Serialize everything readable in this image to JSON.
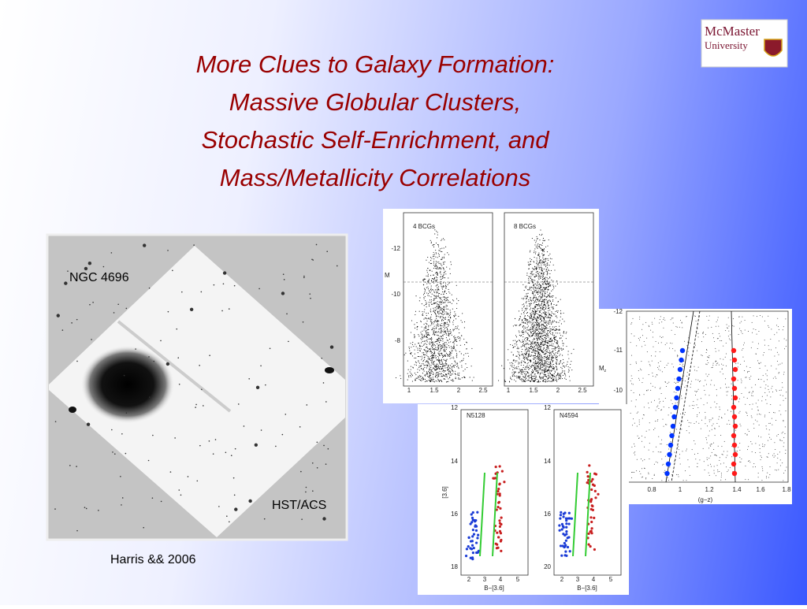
{
  "title": [
    "More Clues to Galaxy Formation:",
    "Massive Globular Clusters,",
    "Stochastic Self-Enrichment, and",
    "Mass/Metallicity Correlations"
  ],
  "logo": {
    "line1": "McMaster",
    "line2": "University"
  },
  "image": {
    "label_top": "NGC 4696",
    "label_bottom": "HST/ACS"
  },
  "caption": "Harris && 2006",
  "figures": {
    "cmd_bcg": {
      "panels": [
        "4 BCGs",
        "8 BCGs"
      ],
      "ylabel": "M",
      "ylabel_sub": "I",
      "yticks": [
        "-12",
        "-10",
        "-8"
      ],
      "xticks": [
        "1",
        "1.5",
        "2",
        "2.5"
      ]
    },
    "cmd_gz": {
      "ylabel": "M",
      "ylabel_sub": "z",
      "yticks": [
        "-12",
        "-11",
        "-10"
      ],
      "xticks": [
        "0.8",
        "1",
        "1.2",
        "1.4",
        "1.6",
        "1.8"
      ],
      "xlabel": "(g−z)"
    },
    "cmd_ir": {
      "panels": [
        "N5128",
        "N4594"
      ],
      "ylabel": "[3.6]",
      "yticks": [
        "12",
        "14",
        "16",
        "18"
      ],
      "yticks_right": [
        "12",
        "14",
        "16",
        "20"
      ],
      "xticks": [
        "2",
        "3",
        "4",
        "5"
      ],
      "xlabel": "B−[3.6]"
    }
  }
}
